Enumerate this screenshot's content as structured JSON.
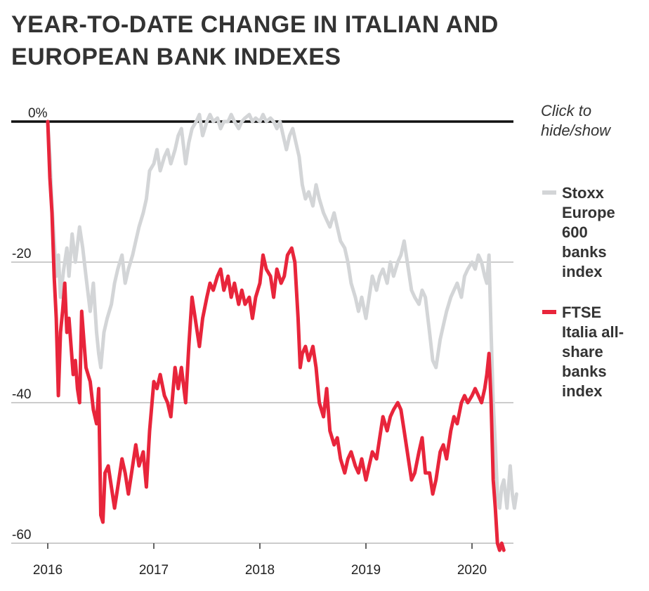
{
  "title": "YEAR-TO-DATE CHANGE IN ITALIAN AND EUROPEAN BANK INDEXES",
  "legend": {
    "hint_lines": [
      "Click to",
      "hide/show"
    ],
    "items": [
      {
        "name": "Stoxx Europe 600 banks index",
        "lines": [
          "Stoxx",
          "Europe",
          "600",
          "banks",
          "index"
        ],
        "color": "#d3d5d7"
      },
      {
        "name": "FTSE Italia all-share banks index",
        "lines": [
          "FTSE",
          "Italia all-",
          "share",
          "banks",
          "index"
        ],
        "color": "#e8253b"
      }
    ]
  },
  "chart_data": {
    "type": "line",
    "title": "YEAR-TO-DATE CHANGE IN ITALIAN AND EUROPEAN BANK INDEXES",
    "xlabel": "",
    "ylabel": "",
    "x_ticks": [
      "2016",
      "2017",
      "2018",
      "2019",
      "2020"
    ],
    "y_ticks": [
      {
        "value": 0,
        "label": "0%"
      },
      {
        "value": -20,
        "label": "-20"
      },
      {
        "value": -40,
        "label": "-40"
      },
      {
        "value": -60,
        "label": "-60"
      }
    ],
    "xlim": [
      2016.0,
      2020.45
    ],
    "ylim": [
      -60,
      0
    ],
    "grid": true,
    "legend_position": "right",
    "series": [
      {
        "name": "Stoxx Europe 600 banks index",
        "color": "#d3d5d7",
        "points": [
          [
            2016.0,
            0
          ],
          [
            2016.02,
            -5
          ],
          [
            2016.04,
            -12
          ],
          [
            2016.06,
            -17
          ],
          [
            2016.08,
            -22
          ],
          [
            2016.1,
            -19
          ],
          [
            2016.12,
            -25
          ],
          [
            2016.15,
            -21
          ],
          [
            2016.18,
            -18
          ],
          [
            2016.2,
            -22
          ],
          [
            2016.23,
            -16
          ],
          [
            2016.26,
            -20
          ],
          [
            2016.3,
            -15
          ],
          [
            2016.33,
            -18
          ],
          [
            2016.36,
            -22
          ],
          [
            2016.4,
            -27
          ],
          [
            2016.43,
            -23
          ],
          [
            2016.46,
            -30
          ],
          [
            2016.48,
            -33
          ],
          [
            2016.5,
            -35
          ],
          [
            2016.53,
            -30
          ],
          [
            2016.56,
            -28
          ],
          [
            2016.6,
            -26
          ],
          [
            2016.63,
            -23
          ],
          [
            2016.66,
            -21
          ],
          [
            2016.7,
            -19
          ],
          [
            2016.73,
            -23
          ],
          [
            2016.76,
            -21
          ],
          [
            2016.8,
            -19
          ],
          [
            2016.83,
            -17
          ],
          [
            2016.86,
            -15
          ],
          [
            2016.9,
            -13
          ],
          [
            2016.93,
            -11
          ],
          [
            2016.96,
            -7
          ],
          [
            2017.0,
            -6
          ],
          [
            2017.03,
            -4
          ],
          [
            2017.06,
            -7
          ],
          [
            2017.1,
            -5
          ],
          [
            2017.13,
            -4
          ],
          [
            2017.16,
            -6
          ],
          [
            2017.2,
            -4
          ],
          [
            2017.23,
            -2
          ],
          [
            2017.26,
            -1
          ],
          [
            2017.3,
            -6
          ],
          [
            2017.33,
            -3
          ],
          [
            2017.36,
            -1
          ],
          [
            2017.4,
            0
          ],
          [
            2017.43,
            1
          ],
          [
            2017.46,
            -2
          ],
          [
            2017.5,
            0
          ],
          [
            2017.53,
            1
          ],
          [
            2017.56,
            0
          ],
          [
            2017.6,
            0.5
          ],
          [
            2017.63,
            -1
          ],
          [
            2017.66,
            0
          ],
          [
            2017.7,
            0
          ],
          [
            2017.73,
            1
          ],
          [
            2017.76,
            0
          ],
          [
            2017.8,
            -1
          ],
          [
            2017.83,
            0
          ],
          [
            2017.86,
            0.5
          ],
          [
            2017.9,
            1
          ],
          [
            2017.93,
            0
          ],
          [
            2017.96,
            0.5
          ],
          [
            2018.0,
            0
          ],
          [
            2018.03,
            1
          ],
          [
            2018.06,
            0
          ],
          [
            2018.1,
            0.5
          ],
          [
            2018.13,
            0
          ],
          [
            2018.16,
            -1
          ],
          [
            2018.19,
            0
          ],
          [
            2018.22,
            -2
          ],
          [
            2018.25,
            -4
          ],
          [
            2018.28,
            -2
          ],
          [
            2018.31,
            -1
          ],
          [
            2018.34,
            -3
          ],
          [
            2018.37,
            -5
          ],
          [
            2018.4,
            -9
          ],
          [
            2018.43,
            -11
          ],
          [
            2018.46,
            -10
          ],
          [
            2018.5,
            -12
          ],
          [
            2018.53,
            -9
          ],
          [
            2018.56,
            -11
          ],
          [
            2018.6,
            -13
          ],
          [
            2018.63,
            -14
          ],
          [
            2018.66,
            -15
          ],
          [
            2018.7,
            -13
          ],
          [
            2018.73,
            -15
          ],
          [
            2018.76,
            -17
          ],
          [
            2018.8,
            -18
          ],
          [
            2018.83,
            -20
          ],
          [
            2018.86,
            -23
          ],
          [
            2018.9,
            -25
          ],
          [
            2018.93,
            -27
          ],
          [
            2018.96,
            -25
          ],
          [
            2019.0,
            -28
          ],
          [
            2019.03,
            -25
          ],
          [
            2019.06,
            -22
          ],
          [
            2019.1,
            -24
          ],
          [
            2019.13,
            -22
          ],
          [
            2019.16,
            -21
          ],
          [
            2019.2,
            -23
          ],
          [
            2019.23,
            -20
          ],
          [
            2019.26,
            -22
          ],
          [
            2019.3,
            -20
          ],
          [
            2019.33,
            -19
          ],
          [
            2019.36,
            -17
          ],
          [
            2019.4,
            -21
          ],
          [
            2019.43,
            -24
          ],
          [
            2019.46,
            -25
          ],
          [
            2019.5,
            -26
          ],
          [
            2019.53,
            -24
          ],
          [
            2019.56,
            -25
          ],
          [
            2019.6,
            -30
          ],
          [
            2019.63,
            -34
          ],
          [
            2019.66,
            -35
          ],
          [
            2019.7,
            -31
          ],
          [
            2019.73,
            -29
          ],
          [
            2019.76,
            -27
          ],
          [
            2019.8,
            -25
          ],
          [
            2019.83,
            -24
          ],
          [
            2019.86,
            -23
          ],
          [
            2019.9,
            -25
          ],
          [
            2019.93,
            -22
          ],
          [
            2019.96,
            -21
          ],
          [
            2020.0,
            -20
          ],
          [
            2020.03,
            -21
          ],
          [
            2020.06,
            -19
          ],
          [
            2020.09,
            -20
          ],
          [
            2020.12,
            -22
          ],
          [
            2020.14,
            -23
          ],
          [
            2020.16,
            -19
          ],
          [
            2020.18,
            -30
          ],
          [
            2020.2,
            -40
          ],
          [
            2020.22,
            -46
          ],
          [
            2020.24,
            -53
          ],
          [
            2020.26,
            -55
          ],
          [
            2020.28,
            -52
          ],
          [
            2020.3,
            -51
          ],
          [
            2020.33,
            -55
          ],
          [
            2020.36,
            -49
          ],
          [
            2020.38,
            -53
          ],
          [
            2020.4,
            -55
          ],
          [
            2020.42,
            -53
          ]
        ]
      },
      {
        "name": "FTSE Italia all-share banks index",
        "color": "#e8253b",
        "points": [
          [
            2016.0,
            0
          ],
          [
            2016.02,
            -8
          ],
          [
            2016.04,
            -13
          ],
          [
            2016.06,
            -22
          ],
          [
            2016.08,
            -28
          ],
          [
            2016.1,
            -39
          ],
          [
            2016.12,
            -30
          ],
          [
            2016.14,
            -27
          ],
          [
            2016.16,
            -23
          ],
          [
            2016.18,
            -30
          ],
          [
            2016.2,
            -28
          ],
          [
            2016.22,
            -32
          ],
          [
            2016.24,
            -36
          ],
          [
            2016.26,
            -34
          ],
          [
            2016.28,
            -38
          ],
          [
            2016.3,
            -40
          ],
          [
            2016.32,
            -27
          ],
          [
            2016.34,
            -31
          ],
          [
            2016.36,
            -35
          ],
          [
            2016.4,
            -37
          ],
          [
            2016.43,
            -41
          ],
          [
            2016.46,
            -43
          ],
          [
            2016.48,
            -38
          ],
          [
            2016.5,
            -56
          ],
          [
            2016.52,
            -57
          ],
          [
            2016.54,
            -50
          ],
          [
            2016.57,
            -49
          ],
          [
            2016.6,
            -52
          ],
          [
            2016.63,
            -55
          ],
          [
            2016.66,
            -52
          ],
          [
            2016.7,
            -48
          ],
          [
            2016.73,
            -50
          ],
          [
            2016.76,
            -53
          ],
          [
            2016.8,
            -49
          ],
          [
            2016.83,
            -46
          ],
          [
            2016.86,
            -49
          ],
          [
            2016.9,
            -47
          ],
          [
            2016.93,
            -52
          ],
          [
            2016.96,
            -44
          ],
          [
            2017.0,
            -37
          ],
          [
            2017.03,
            -38
          ],
          [
            2017.06,
            -36
          ],
          [
            2017.1,
            -39
          ],
          [
            2017.13,
            -40
          ],
          [
            2017.16,
            -42
          ],
          [
            2017.2,
            -35
          ],
          [
            2017.23,
            -38
          ],
          [
            2017.26,
            -35
          ],
          [
            2017.3,
            -40
          ],
          [
            2017.33,
            -32
          ],
          [
            2017.36,
            -25
          ],
          [
            2017.4,
            -29
          ],
          [
            2017.43,
            -32
          ],
          [
            2017.46,
            -28
          ],
          [
            2017.5,
            -25
          ],
          [
            2017.53,
            -23
          ],
          [
            2017.56,
            -24
          ],
          [
            2017.6,
            -22
          ],
          [
            2017.63,
            -21
          ],
          [
            2017.66,
            -24
          ],
          [
            2017.7,
            -22
          ],
          [
            2017.73,
            -25
          ],
          [
            2017.76,
            -23
          ],
          [
            2017.8,
            -26
          ],
          [
            2017.83,
            -24
          ],
          [
            2017.86,
            -26
          ],
          [
            2017.9,
            -25
          ],
          [
            2017.93,
            -28
          ],
          [
            2017.96,
            -25
          ],
          [
            2018.0,
            -23
          ],
          [
            2018.03,
            -19
          ],
          [
            2018.06,
            -21
          ],
          [
            2018.1,
            -22
          ],
          [
            2018.13,
            -25
          ],
          [
            2018.16,
            -21
          ],
          [
            2018.2,
            -23
          ],
          [
            2018.23,
            -22
          ],
          [
            2018.26,
            -19
          ],
          [
            2018.3,
            -18
          ],
          [
            2018.33,
            -20
          ],
          [
            2018.36,
            -28
          ],
          [
            2018.38,
            -35
          ],
          [
            2018.4,
            -33
          ],
          [
            2018.43,
            -32
          ],
          [
            2018.46,
            -34
          ],
          [
            2018.5,
            -32
          ],
          [
            2018.53,
            -35
          ],
          [
            2018.56,
            -40
          ],
          [
            2018.6,
            -42
          ],
          [
            2018.63,
            -38
          ],
          [
            2018.66,
            -44
          ],
          [
            2018.7,
            -46
          ],
          [
            2018.73,
            -45
          ],
          [
            2018.76,
            -48
          ],
          [
            2018.8,
            -50
          ],
          [
            2018.83,
            -48
          ],
          [
            2018.86,
            -47
          ],
          [
            2018.9,
            -49
          ],
          [
            2018.93,
            -50
          ],
          [
            2018.96,
            -48
          ],
          [
            2019.0,
            -51
          ],
          [
            2019.03,
            -49
          ],
          [
            2019.06,
            -47
          ],
          [
            2019.1,
            -48
          ],
          [
            2019.13,
            -45
          ],
          [
            2019.16,
            -42
          ],
          [
            2019.2,
            -44
          ],
          [
            2019.23,
            -42
          ],
          [
            2019.26,
            -41
          ],
          [
            2019.3,
            -40
          ],
          [
            2019.33,
            -41
          ],
          [
            2019.36,
            -44
          ],
          [
            2019.4,
            -48
          ],
          [
            2019.43,
            -51
          ],
          [
            2019.46,
            -50
          ],
          [
            2019.5,
            -47
          ],
          [
            2019.53,
            -45
          ],
          [
            2019.56,
            -50
          ],
          [
            2019.6,
            -50
          ],
          [
            2019.63,
            -53
          ],
          [
            2019.66,
            -51
          ],
          [
            2019.7,
            -47
          ],
          [
            2019.73,
            -46
          ],
          [
            2019.76,
            -48
          ],
          [
            2019.8,
            -44
          ],
          [
            2019.83,
            -42
          ],
          [
            2019.86,
            -43
          ],
          [
            2019.9,
            -40
          ],
          [
            2019.93,
            -39
          ],
          [
            2019.96,
            -40
          ],
          [
            2020.0,
            -39
          ],
          [
            2020.03,
            -38
          ],
          [
            2020.06,
            -39
          ],
          [
            2020.09,
            -40
          ],
          [
            2020.12,
            -38
          ],
          [
            2020.14,
            -36
          ],
          [
            2020.16,
            -33
          ],
          [
            2020.18,
            -40
          ],
          [
            2020.2,
            -51
          ],
          [
            2020.22,
            -55
          ],
          [
            2020.24,
            -60
          ],
          [
            2020.26,
            -61
          ],
          [
            2020.28,
            -60
          ],
          [
            2020.3,
            -61
          ]
        ]
      }
    ]
  }
}
